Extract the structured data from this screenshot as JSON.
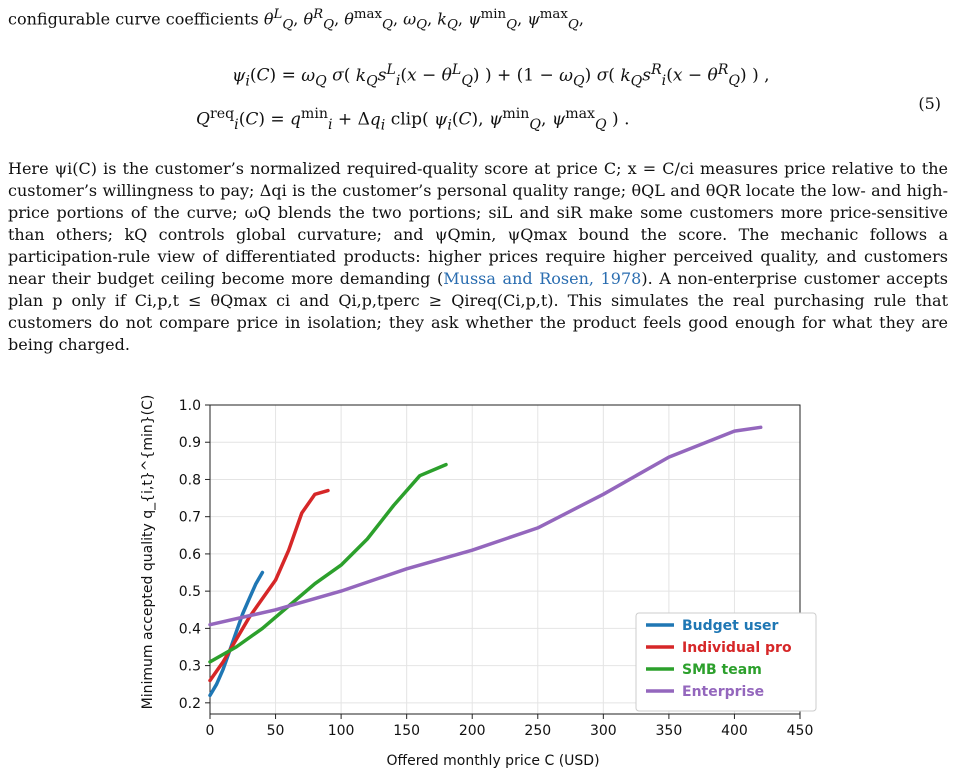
{
  "text": {
    "intro_line": "configurable curve coefficients θQL, θQR, θQmax, ωQ, kQ, ψQmin, ψQmax,",
    "eq_line1": "ψi(C) = ωQ σ( kQ siL (x − θQL) ) + (1 − ωQ) σ( kQ siR (x − θQR) ) ,",
    "eq_line2": "Qireq(C) = qimin + Δqi clip( ψi(C), ψQmin, ψQmax ) .",
    "eq_number": "(5)",
    "paragraph_before_cite": "Here ψi(C) is the customer’s normalized required-quality score at price C; x = C/ci measures price relative to the customer’s willingness to pay; Δqi is the customer’s personal quality range; θQL and θQR locate the low- and high-price portions of the curve; ωQ blends the two portions; siL and siR make some customers more price-sensitive than others; kQ controls global curvature; and ψQmin, ψQmax bound the score. The mechanic follows a participation-rule view of differentiated products: higher prices require higher perceived quality, and customers near their budget ceiling become more demanding (",
    "citation": "Mussa and Rosen, 1978",
    "paragraph_after_cite": "). A non-enterprise customer accepts plan p only if Ci,p,t ≤ θQmax ci and Qi,p,tperc ≥ Qireq(Ci,p,t). This simulates the real purchasing rule that customers do not compare price in isolation; they ask whether the product feels good enough for what they are being charged."
  },
  "chart_data": {
    "type": "line",
    "xlabel": "Offered monthly price C (USD)",
    "ylabel": "Minimum accepted quality q_{i,t}^{min}(C)",
    "xlim": [
      0,
      450
    ],
    "ylim": [
      0.17,
      1.0
    ],
    "xticks": [
      0,
      50,
      100,
      150,
      200,
      250,
      300,
      350,
      400,
      450
    ],
    "yticks": [
      0.2,
      0.3,
      0.4,
      0.5,
      0.6,
      0.7,
      0.8,
      0.9,
      1.0
    ],
    "grid": true,
    "legend_position": "bottom-right",
    "series": [
      {
        "name": "Budget user",
        "color": "#1f77b4",
        "x": [
          0,
          5,
          10,
          15,
          20,
          25,
          30,
          35,
          40
        ],
        "y": [
          0.22,
          0.25,
          0.29,
          0.34,
          0.39,
          0.44,
          0.48,
          0.52,
          0.55
        ]
      },
      {
        "name": "Individual pro",
        "color": "#d62728",
        "x": [
          0,
          10,
          20,
          30,
          40,
          50,
          60,
          70,
          80,
          90
        ],
        "y": [
          0.26,
          0.31,
          0.37,
          0.43,
          0.48,
          0.53,
          0.61,
          0.71,
          0.76,
          0.77
        ]
      },
      {
        "name": "SMB team",
        "color": "#2ca02c",
        "x": [
          0,
          20,
          40,
          60,
          80,
          100,
          120,
          140,
          160,
          180
        ],
        "y": [
          0.31,
          0.35,
          0.4,
          0.46,
          0.52,
          0.57,
          0.64,
          0.73,
          0.81,
          0.84
        ]
      },
      {
        "name": "Enterprise",
        "color": "#9467bd",
        "x": [
          0,
          50,
          100,
          150,
          200,
          250,
          300,
          350,
          400,
          420
        ],
        "y": [
          0.41,
          0.45,
          0.5,
          0.56,
          0.61,
          0.67,
          0.76,
          0.86,
          0.93,
          0.94
        ]
      }
    ]
  }
}
